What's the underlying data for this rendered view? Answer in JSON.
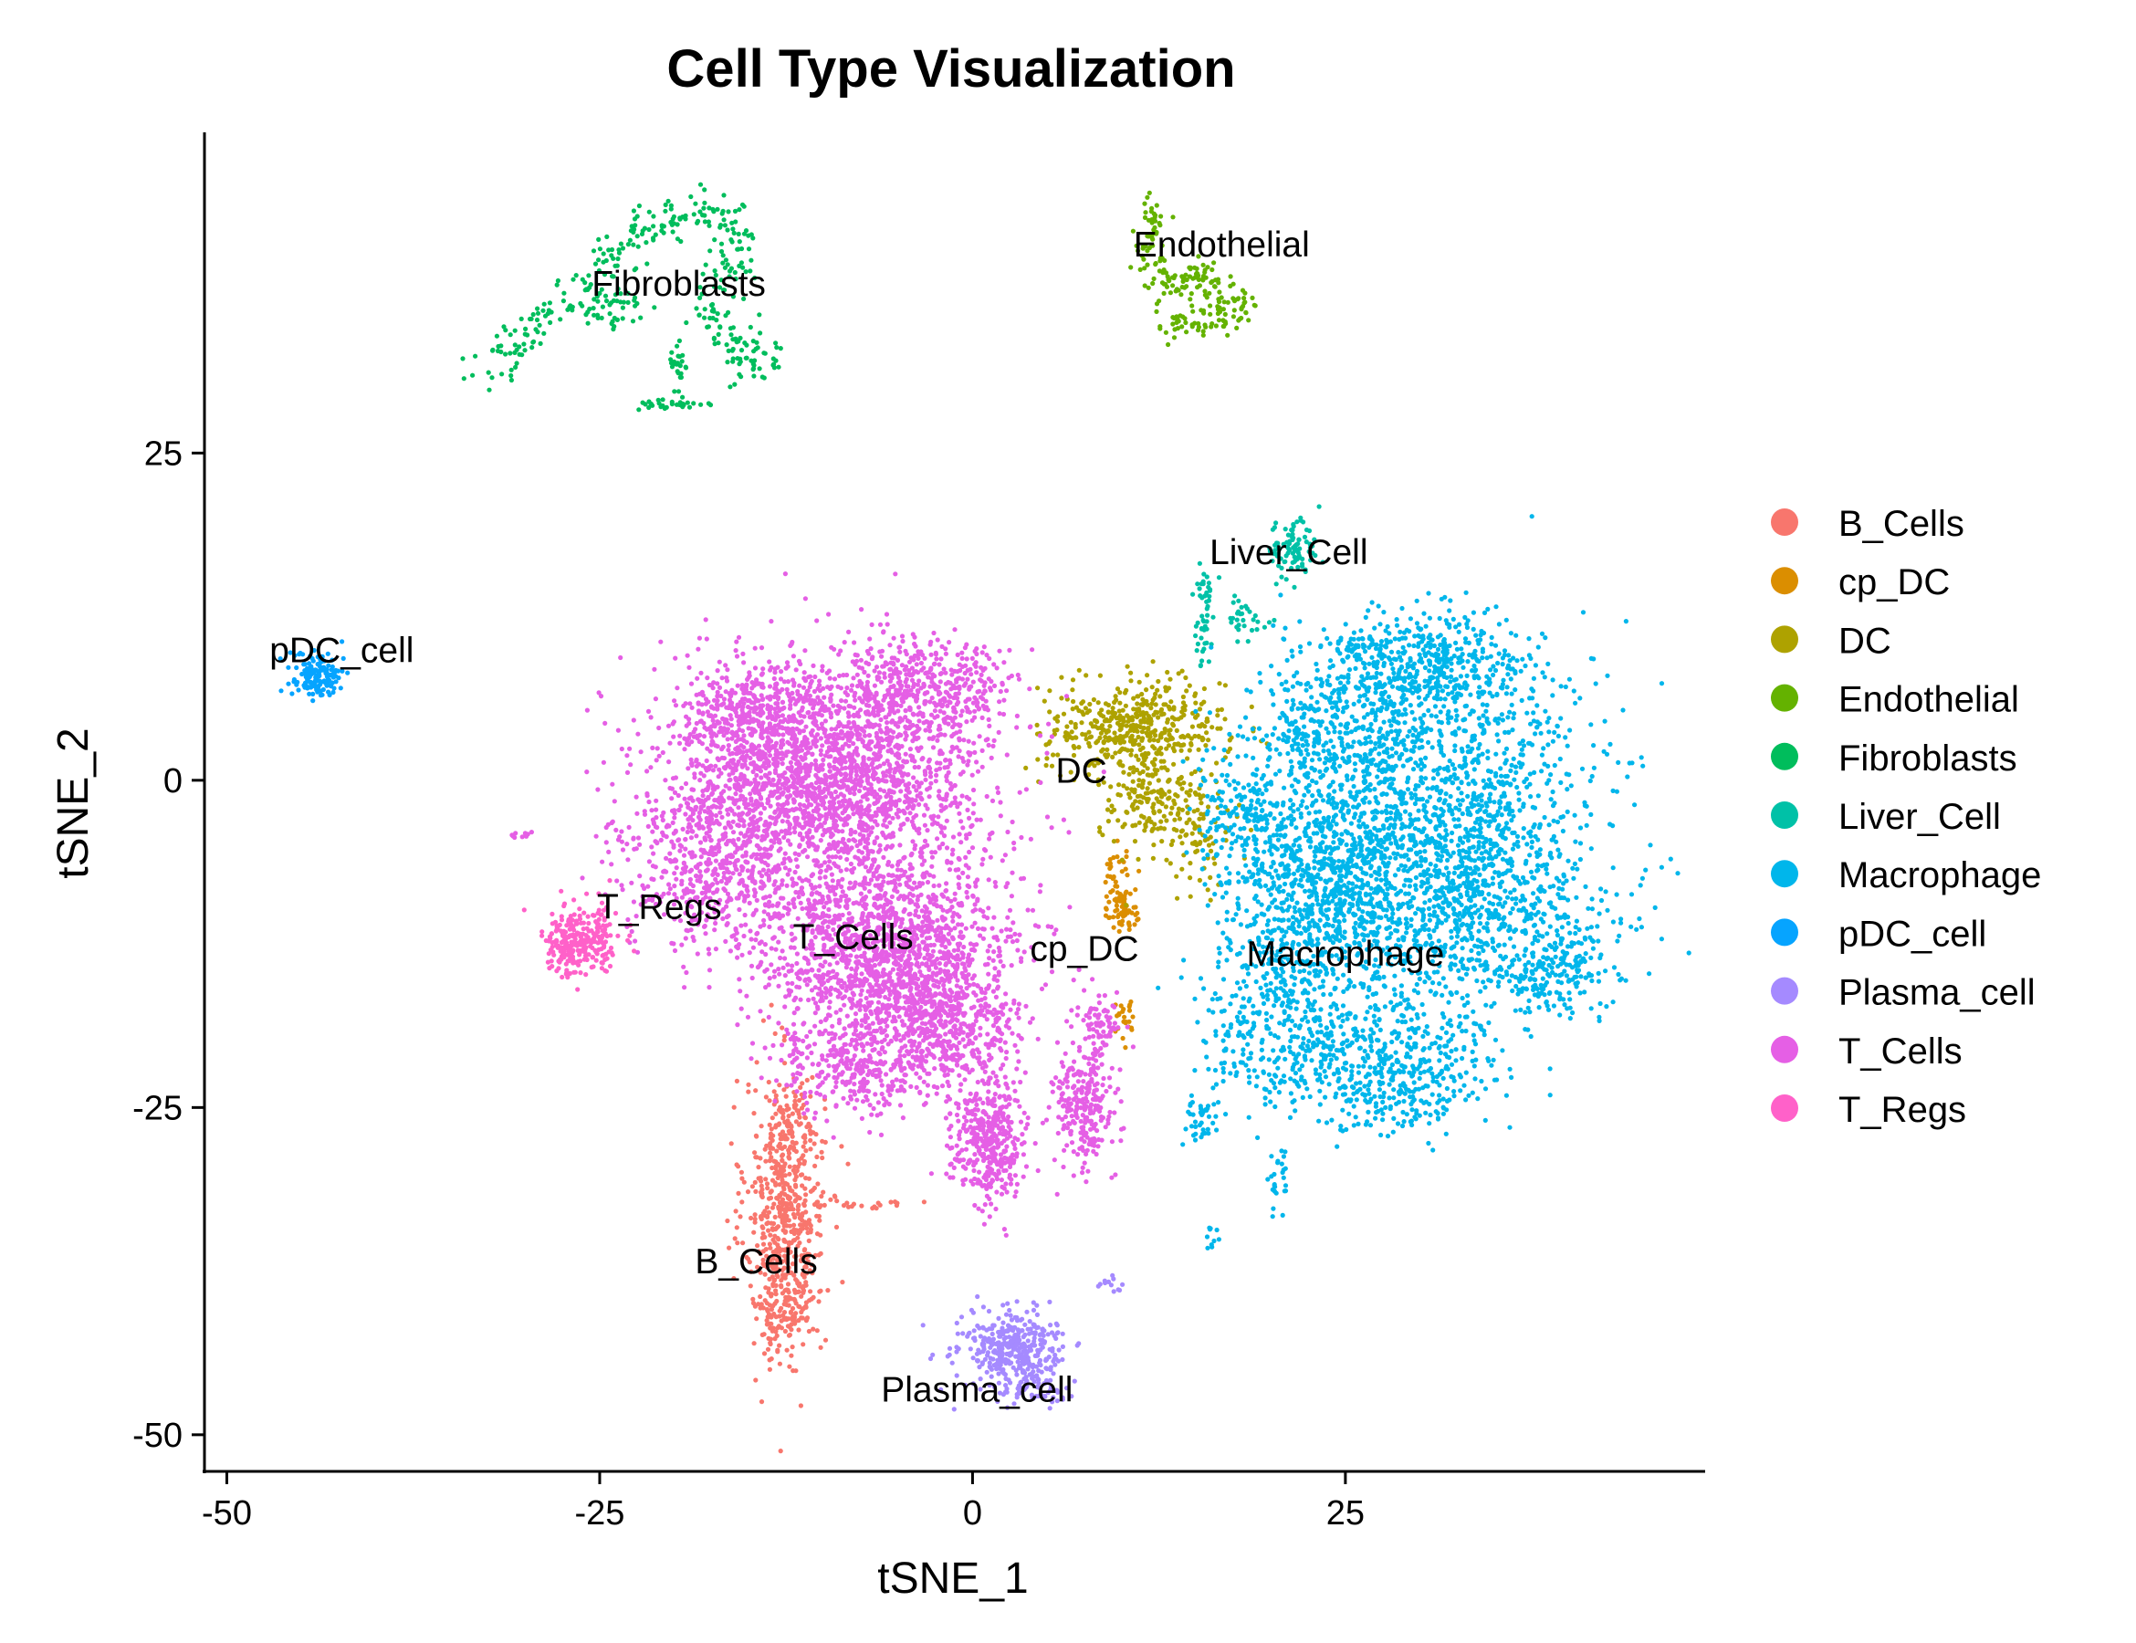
{
  "chart_data": {
    "type": "scatter",
    "title": "Cell Type Visualization",
    "xlabel": "tSNE_1",
    "ylabel": "tSNE_2",
    "xlim": [
      -51.5,
      49
    ],
    "ylim": [
      -52.8,
      49.5
    ],
    "x_ticks": [
      -50,
      -25,
      0,
      25
    ],
    "y_ticks": [
      -50,
      -25,
      0,
      25
    ],
    "x_tick_labels": [
      "-50",
      "-25",
      "0",
      "25"
    ],
    "y_tick_labels": [
      "-50",
      "-25",
      "0",
      "25"
    ],
    "grid": false,
    "legend_position": "right",
    "series": [
      {
        "name": "B_Cells",
        "color": "#F8766D",
        "label_xy": [
          -14.5,
          -36.7
        ],
        "blobs": [
          [
            -12.6,
            -33.5,
            2.2,
            9.0,
            600
          ],
          [
            -12.0,
            -26.5,
            1.5,
            2.5,
            60
          ],
          [
            -12.5,
            -40.5,
            1.3,
            2.0,
            60
          ],
          [
            -7.5,
            -32.3,
            2.5,
            0.5,
            25
          ]
        ]
      },
      {
        "name": "cp_DC",
        "color": "#DB8E00",
        "label_xy": [
          7.5,
          -12.8
        ],
        "blobs": [
          [
            9.8,
            -8.5,
            1.0,
            2.5,
            70
          ],
          [
            10.3,
            -10.2,
            0.8,
            0.8,
            25
          ],
          [
            10.3,
            -18.3,
            0.8,
            1.5,
            25
          ]
        ]
      },
      {
        "name": "DC",
        "color": "#AEA200",
        "label_xy": [
          7.3,
          0.8
        ],
        "blobs": [
          [
            11.0,
            4.0,
            5.0,
            3.0,
            450
          ],
          [
            12.0,
            -1.5,
            3.0,
            2.5,
            150
          ],
          [
            15.0,
            -4.5,
            2.0,
            3.0,
            80
          ]
        ]
      },
      {
        "name": "Endothelial",
        "color": "#64B200",
        "label_xy": [
          16.7,
          41.0
        ],
        "path": [
          [
            12.2,
            44.0
          ],
          [
            11.8,
            41.5
          ],
          [
            12.2,
            38.5
          ],
          [
            14.0,
            37.5
          ],
          [
            15.3,
            39.0
          ],
          [
            16.5,
            37.8
          ],
          [
            18.2,
            36.5
          ],
          [
            17.2,
            35.0
          ],
          [
            15.0,
            35.2
          ],
          [
            12.5,
            34.8
          ]
        ],
        "path_n": 220,
        "jitter": 0.6
      },
      {
        "name": "Fibroblasts",
        "color": "#00BD5C",
        "label_xy": [
          -19.7,
          38.0
        ],
        "path": [
          [
            -32.5,
            31.0
          ],
          [
            -30.5,
            33.5
          ],
          [
            -28.5,
            35.5
          ],
          [
            -26.5,
            37.0
          ],
          [
            -24.5,
            38.5
          ],
          [
            -23.5,
            41.5
          ],
          [
            -21.0,
            43.0
          ],
          [
            -18.5,
            43.5
          ],
          [
            -16.5,
            43.0
          ],
          [
            -16.0,
            41.0
          ],
          [
            -16.8,
            38.5
          ],
          [
            -17.8,
            35.5
          ],
          [
            -16.0,
            33.5
          ],
          [
            -14.5,
            32.5
          ],
          [
            -14.5,
            30.5
          ]
        ],
        "path_n": 330,
        "jitter": 0.9,
        "blobs": [
          [
            -20.0,
            28.7,
            2.0,
            0.4,
            30
          ],
          [
            -19.8,
            31.0,
            0.6,
            2.0,
            25
          ],
          [
            -24.0,
            36.0,
            2.5,
            1.5,
            40
          ]
        ]
      },
      {
        "name": "Liver_Cell",
        "color": "#00C1A7",
        "label_xy": [
          21.2,
          17.5
        ],
        "blobs": [
          [
            21.5,
            17.5,
            1.2,
            1.8,
            90
          ],
          [
            15.5,
            11.5,
            0.5,
            3.0,
            35
          ],
          [
            18.5,
            12.5,
            1.5,
            1.5,
            30
          ],
          [
            15.8,
            15.0,
            0.5,
            1.0,
            15
          ]
        ]
      },
      {
        "name": "Macrophage",
        "color": "#00B6EB",
        "label_xy": [
          25.0,
          -13.2
        ],
        "blobs": [
          [
            30.0,
            0.0,
            9.0,
            9.0,
            1400
          ],
          [
            33.0,
            -10.0,
            8.0,
            7.0,
            900
          ],
          [
            28.0,
            -22.0,
            6.0,
            4.0,
            500
          ],
          [
            22.0,
            -12.0,
            5.0,
            7.0,
            500
          ],
          [
            30.0,
            9.0,
            6.0,
            3.0,
            400
          ],
          [
            39.0,
            -15.0,
            3.0,
            3.0,
            150
          ],
          [
            24.0,
            -7.0,
            5.0,
            5.0,
            350
          ],
          [
            18.5,
            -3.0,
            2.5,
            4.0,
            150
          ],
          [
            20.0,
            -20.0,
            4.0,
            4.0,
            200
          ],
          [
            15.5,
            -26.0,
            1.0,
            1.5,
            40
          ],
          [
            20.5,
            -30.5,
            0.6,
            2.0,
            25
          ],
          [
            16.0,
            -35.0,
            0.3,
            1.0,
            10
          ],
          [
            23.0,
            4.0,
            3.0,
            3.0,
            150
          ]
        ]
      },
      {
        "name": "pDC_cell",
        "color": "#06A4FF",
        "label_xy": [
          -42.3,
          10.0
        ],
        "blobs": [
          [
            -44.0,
            8.0,
            1.4,
            1.3,
            150
          ]
        ]
      },
      {
        "name": "Plasma_cell",
        "color": "#A58AFF",
        "label_xy": [
          0.3,
          -46.5
        ],
        "blobs": [
          [
            2.5,
            -43.5,
            3.0,
            2.5,
            380
          ],
          [
            4.0,
            -46.5,
            2.0,
            1.0,
            60
          ],
          [
            9.3,
            -38.5,
            0.6,
            0.6,
            12
          ]
        ]
      },
      {
        "name": "T_Cells",
        "color": "#E55FE5",
        "label_xy": [
          -8.0,
          -11.9
        ],
        "blobs": [
          [
            -10.0,
            0.0,
            9.0,
            7.0,
            2300
          ],
          [
            -6.0,
            -13.0,
            7.0,
            6.0,
            1500
          ],
          [
            -17.0,
            -7.0,
            5.0,
            5.0,
            500
          ],
          [
            -2.0,
            -19.0,
            4.0,
            4.0,
            500
          ],
          [
            1.0,
            -27.5,
            2.0,
            4.0,
            400
          ],
          [
            -8.0,
            -22.0,
            4.0,
            3.0,
            300
          ],
          [
            -3.0,
            7.0,
            5.0,
            3.0,
            400
          ],
          [
            -15.0,
            5.0,
            4.0,
            3.0,
            300
          ],
          [
            7.5,
            -25.0,
            1.8,
            4.0,
            260
          ],
          [
            8.5,
            -18.5,
            1.2,
            2.0,
            60
          ],
          [
            -30.0,
            -4.2,
            1.0,
            0.3,
            10
          ]
        ]
      },
      {
        "name": "T_Regs",
        "color": "#FF61C9",
        "label_xy": [
          -21.0,
          -9.6
        ],
        "blobs": [
          [
            -27.0,
            -12.5,
            1.6,
            2.0,
            200
          ],
          [
            -25.0,
            -12.0,
            1.2,
            2.5,
            80
          ]
        ]
      }
    ]
  }
}
